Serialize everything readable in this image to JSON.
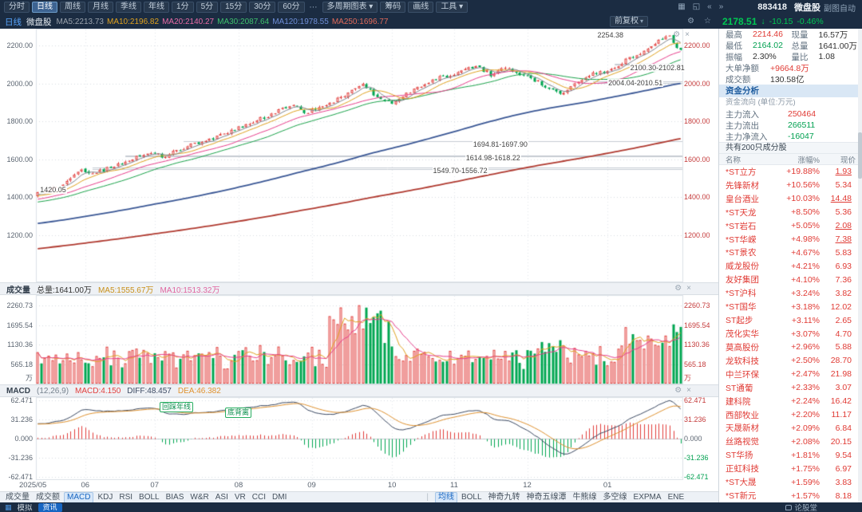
{
  "header": {
    "periods": [
      "分时",
      "日线",
      "周线",
      "月线",
      "季线",
      "年线",
      "1分",
      "5分",
      "15分",
      "30分",
      "60分"
    ],
    "selected_period": "日线",
    "more_dots": "⋯",
    "tools": [
      {
        "label": "多周期图表",
        "arrow": true
      },
      {
        "label": "筹码",
        "arrow": false
      },
      {
        "label": "画线",
        "arrow": false
      },
      {
        "label": "工具",
        "arrow": true
      }
    ],
    "icons": [
      {
        "name": "multi-window-icon",
        "glyph": "▦"
      },
      {
        "name": "fullscreen-icon",
        "glyph": "◱"
      },
      {
        "name": "prev-stock-icon",
        "glyph": "«"
      },
      {
        "name": "next-stock-icon",
        "glyph": "»"
      }
    ],
    "code": "883418",
    "name": "微盘股",
    "right_label": "副图自动"
  },
  "infobar": {
    "period_label": "日线",
    "stock_label": "微盘股",
    "ma_labels": [
      {
        "text": "MA5:2213.73",
        "color": "#9aa2ac"
      },
      {
        "text": "MA10:2196.82",
        "color": "#e0a21f"
      },
      {
        "text": "MA20:2140.27",
        "color": "#e86ba6"
      },
      {
        "text": "MA30:2087.64",
        "color": "#3ec06d"
      },
      {
        "text": "MA120:1978.55",
        "color": "#6f8fd8"
      },
      {
        "text": "MA250:1696.77",
        "color": "#e06a5a"
      }
    ],
    "adjust_button": "前复权",
    "icons": [
      {
        "name": "settings-icon",
        "glyph": "⚙"
      },
      {
        "name": "favorite-icon",
        "glyph": "☆"
      }
    ],
    "price": {
      "value": "2178.51",
      "arrow": "↓",
      "change": "-10.15",
      "pct": "-0.46%",
      "color": "#00c853"
    }
  },
  "pane_icons": [
    {
      "name": "pane-settings-icon",
      "glyph": "⚙"
    },
    {
      "name": "pane-close-icon",
      "glyph": "×"
    }
  ],
  "volume_header": {
    "title": "成交量",
    "total": "总量:1641.00万",
    "ma5": "MA5:1555.67万",
    "ma10": "MA10:1513.32万"
  },
  "macd_header": {
    "title": "MACD",
    "params": "(12,26,9)",
    "macd": "MACD:4.150",
    "diff": "DIFF:48.457",
    "dea": "DEA:46.382"
  },
  "indicator_tabs": {
    "left": [
      "成交量",
      "成交额",
      "MACD",
      "KDJ",
      "RSI",
      "BOLL",
      "BIAS",
      "W&R",
      "ASI",
      "VR",
      "CCI",
      "DMI"
    ],
    "left_selected": "MACD",
    "right": [
      "均线",
      "BOLL",
      "神奇九转",
      "神奇五缐潭",
      "牛熊缐",
      "多空缐",
      "EXPMA",
      "ENE"
    ],
    "right_selected": "均线"
  },
  "statusbar": {
    "grid_glyph": "▦",
    "sim_label": "模拟",
    "news_label": "资讯",
    "right_label": "论股堂"
  },
  "right_panel": {
    "quote_rows": [
      {
        "pairs": [
          {
            "label": "最高",
            "value": "2214.46",
            "color": "#e03a34"
          },
          {
            "label": "现量",
            "value": "16.57万",
            "color": "#333333"
          }
        ]
      },
      {
        "pairs": [
          {
            "label": "最低",
            "value": "2164.02",
            "color": "#00a050"
          },
          {
            "label": "总量",
            "value": "1641.00万",
            "color": "#333333"
          }
        ]
      },
      {
        "pairs": [
          {
            "label": "振幅",
            "value": "2.30%",
            "color": "#333333"
          },
          {
            "label": "量比",
            "value": "1.08",
            "color": "#333333"
          }
        ]
      },
      {
        "pairs": [
          {
            "label": "大单净额",
            "value": "+9664.8万",
            "color": "#e03a34"
          }
        ]
      },
      {
        "pairs": [
          {
            "label": "成交额",
            "value": "130.58亿",
            "color": "#333333"
          }
        ]
      }
    ],
    "fund_section_title": "资金分析",
    "fund_unit": "资金流向 (单位:万元)",
    "fund_rows": [
      {
        "label": "主力流入",
        "value": "250464",
        "color": "#e03a34"
      },
      {
        "label": "主力流出",
        "value": "266511",
        "color": "#00a050"
      },
      {
        "label": "主力净流入",
        "value": "-16047",
        "color": "#00a050"
      }
    ],
    "constituents_note": "共有200只成分股",
    "table": {
      "headers": [
        "名称",
        "涨幅%",
        "现价"
      ],
      "rows": [
        {
          "name": "*ST立方",
          "pct": "+19.88%",
          "price": "1.93",
          "underline": true
        },
        {
          "name": "先锋新材",
          "pct": "+10.56%",
          "price": "5.34",
          "underline": false
        },
        {
          "name": "皇台酒业",
          "pct": "+10.03%",
          "price": "14.48",
          "underline": true
        },
        {
          "name": "*ST天龙",
          "pct": "+8.50%",
          "price": "5.36",
          "underline": false
        },
        {
          "name": "*ST岩石",
          "pct": "+5.05%",
          "price": "2.08",
          "underline": true
        },
        {
          "name": "*ST华嵘",
          "pct": "+4.98%",
          "price": "7.38",
          "underline": true
        },
        {
          "name": "*ST景农",
          "pct": "+4.67%",
          "price": "5.83",
          "underline": false
        },
        {
          "name": "威龙股份",
          "pct": "+4.21%",
          "price": "6.93",
          "underline": false
        },
        {
          "name": "友好集团",
          "pct": "+4.10%",
          "price": "7.36",
          "underline": false
        },
        {
          "name": "*ST沪科",
          "pct": "+3.24%",
          "price": "3.82",
          "underline": false
        },
        {
          "name": "*ST国华",
          "pct": "+3.18%",
          "price": "12.02",
          "underline": false
        },
        {
          "name": "ST起步",
          "pct": "+3.11%",
          "price": "2.65",
          "underline": false
        },
        {
          "name": "茂化实华",
          "pct": "+3.07%",
          "price": "4.70",
          "underline": false
        },
        {
          "name": "莫高股份",
          "pct": "+2.96%",
          "price": "5.88",
          "underline": false
        },
        {
          "name": "龙软科技",
          "pct": "+2.50%",
          "price": "28.70",
          "underline": false
        },
        {
          "name": "中兰环保",
          "pct": "+2.47%",
          "price": "21.98",
          "underline": false
        },
        {
          "name": "ST通葡",
          "pct": "+2.33%",
          "price": "3.07",
          "underline": false
        },
        {
          "name": "建科院",
          "pct": "+2.24%",
          "price": "16.42",
          "underline": false
        },
        {
          "name": "西部牧业",
          "pct": "+2.20%",
          "price": "11.17",
          "underline": false
        },
        {
          "name": "天晟新材",
          "pct": "+2.09%",
          "price": "6.84",
          "underline": false
        },
        {
          "name": "丝路视觉",
          "pct": "+2.08%",
          "price": "20.15",
          "underline": false
        },
        {
          "name": "ST华扬",
          "pct": "+1.81%",
          "price": "9.54",
          "underline": false
        },
        {
          "name": "正虹科技",
          "pct": "+1.75%",
          "price": "6.97",
          "underline": false
        },
        {
          "name": "*ST大晟",
          "pct": "+1.59%",
          "price": "3.83",
          "underline": false
        },
        {
          "name": "*ST新元",
          "pct": "+1.57%",
          "price": "8.18",
          "underline": false
        }
      ]
    }
  },
  "chart_data": [
    {
      "type": "candlestick",
      "title": "微盘股 日线",
      "days_total": 177,
      "y_ticks": [
        2200,
        2000,
        1800,
        1600,
        1400,
        1200
      ],
      "y_range": [
        950,
        2290
      ],
      "x_months": {
        "labels": [
          "2025/05",
          "06",
          "07",
          "08",
          "09",
          "10",
          "11",
          "12",
          "01"
        ],
        "day_index": [
          0,
          13,
          32,
          55,
          75,
          97,
          114,
          134,
          156
        ]
      },
      "close_anchors": [
        [
          0,
          1420
        ],
        [
          6,
          1455
        ],
        [
          12,
          1540
        ],
        [
          15,
          1522
        ],
        [
          22,
          1572
        ],
        [
          31,
          1640
        ],
        [
          34,
          1612
        ],
        [
          40,
          1662
        ],
        [
          47,
          1702
        ],
        [
          54,
          1758
        ],
        [
          58,
          1792
        ],
        [
          65,
          1846
        ],
        [
          70,
          1896
        ],
        [
          73,
          1848
        ],
        [
          78,
          1872
        ],
        [
          85,
          1952
        ],
        [
          89,
          2000
        ],
        [
          93,
          1930
        ],
        [
          97,
          1902
        ],
        [
          104,
          1982
        ],
        [
          110,
          2030
        ],
        [
          114,
          2052
        ],
        [
          120,
          2096
        ],
        [
          124,
          2048
        ],
        [
          128,
          2092
        ],
        [
          133,
          2042
        ],
        [
          138,
          2000
        ],
        [
          143,
          1946
        ],
        [
          147,
          1992
        ],
        [
          152,
          2052
        ],
        [
          156,
          2062
        ],
        [
          160,
          2112
        ],
        [
          165,
          2162
        ],
        [
          170,
          2232
        ],
        [
          173,
          2246
        ],
        [
          176,
          2178.51
        ]
      ],
      "prehistory_anchors": [
        [
          -250,
          905
        ],
        [
          -180,
          1005
        ],
        [
          -120,
          1120
        ],
        [
          -60,
          1255
        ],
        [
          -20,
          1355
        ],
        [
          0,
          1420
        ]
      ],
      "last": {
        "close": 2178.51,
        "prev_close": 2188.66,
        "change": -10.15,
        "pct": "-0.46%",
        "peak_high": 2254.38,
        "peak_day": 173
      },
      "colors": {
        "up": "#e23e3c",
        "down": "#00a651",
        "ma5": "#80868f",
        "ma10": "#e0a21f",
        "ma20": "#e83e8c",
        "ma30": "#1aa34a",
        "ma120": "#3a5795",
        "ma250": "#b03a30"
      },
      "gap_bands": [
        {
          "from_day": 15,
          "low": 1549.7,
          "high": 1556.72
        },
        {
          "from_day": 24,
          "low": 1614.98,
          "high": 1618.22
        },
        {
          "from_day": 40,
          "low": 1694.81,
          "high": 1697.9
        },
        {
          "from_day": 152,
          "low": 2004.04,
          "high": 2010.51
        },
        {
          "from_day": 158,
          "low": 2100.3,
          "high": 2102.81
        }
      ],
      "annotations": [
        {
          "text": "1420.05",
          "day": 0,
          "value": 1437,
          "align": "left"
        },
        {
          "text": "1549.70-1556.72",
          "day": 108,
          "value": 1540
        },
        {
          "text": "1614.98-1618.22",
          "day": 117,
          "value": 1607
        },
        {
          "text": "1694.81-1697.90",
          "day": 119,
          "value": 1679
        },
        {
          "text": "2004.04-2010.51",
          "day": 156,
          "value": 2003
        },
        {
          "text": "2100.30-2102.81",
          "day": 162,
          "value": 2085
        },
        {
          "text": "2254.38",
          "day": 153,
          "value": 2258
        }
      ]
    },
    {
      "type": "bar",
      "name": "成交量",
      "y_ticks": [
        2260.73,
        1695.54,
        1130.36,
        565.18
      ],
      "unit": "万",
      "draw_max": 2550,
      "max_volume": {
        "day": 88,
        "value": 2260.73
      },
      "last_volume": 1641.0,
      "ma5_last": 1555.67,
      "ma10_last": 1513.32
    },
    {
      "type": "macd",
      "params": [
        12,
        26,
        9
      ],
      "y_ticks": [
        62.471,
        31.236,
        0,
        -31.236,
        -62.471
      ],
      "last": {
        "macd": 4.15,
        "diff": 48.457,
        "dea": 46.382
      },
      "annotations": [
        {
          "text": "回踩年线",
          "x": 200,
          "y": 6
        },
        {
          "text": "底背离",
          "x": 282,
          "y": 13
        }
      ]
    }
  ]
}
